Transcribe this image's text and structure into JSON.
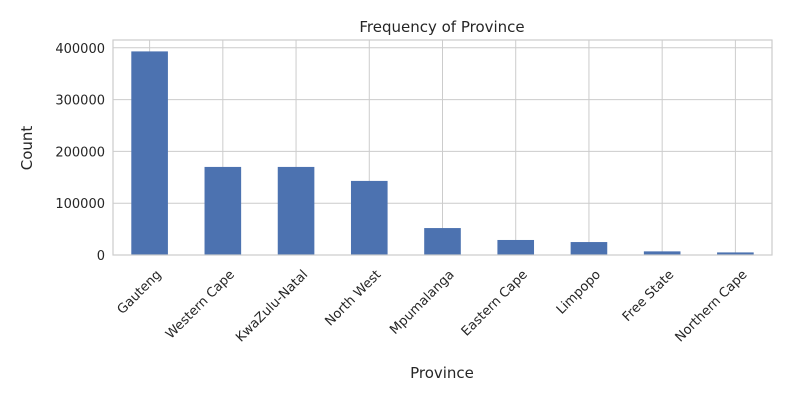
{
  "chart_data": {
    "type": "bar",
    "title": "Frequency of Province",
    "xlabel": "Province",
    "ylabel": "Count",
    "categories": [
      "Gauteng",
      "Western Cape",
      "KwaZulu-Natal",
      "North West",
      "Mpumalanga",
      "Eastern Cape",
      "Limpopo",
      "Free State",
      "Northern Cape"
    ],
    "values": [
      393000,
      170000,
      170000,
      143000,
      52000,
      29000,
      25000,
      7000,
      5000
    ],
    "ylim": [
      0,
      415000
    ],
    "yticks": [
      0,
      100000,
      200000,
      300000,
      400000
    ],
    "grid": true,
    "bar_color": "#4c72b0"
  }
}
